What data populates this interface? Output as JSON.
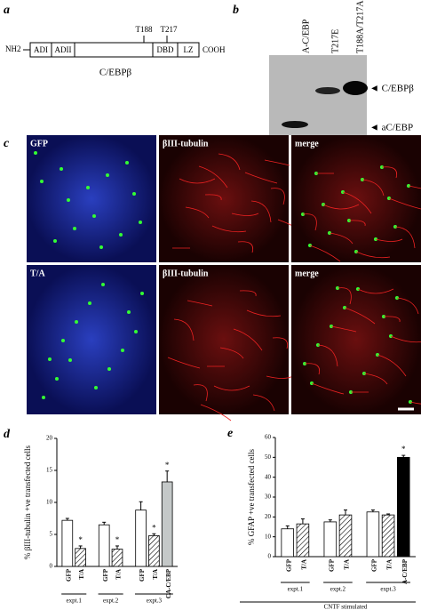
{
  "a": {
    "panel_label": "a",
    "n_term": "NH2",
    "c_term": "COOH",
    "domains": [
      "ADI",
      "ADII",
      "DBD",
      "LZ"
    ],
    "sites": [
      "T188",
      "T217"
    ],
    "name": "C/EBPβ"
  },
  "b": {
    "panel_label": "b",
    "lanes": [
      "A-C/EBP",
      "T217E",
      "T188A/T217A"
    ],
    "bands": [
      "◄ C/EBPβ",
      "◄ aC/EBP"
    ]
  },
  "c": {
    "panel_label": "c",
    "labels": [
      "GFP",
      "βIII-tubulin",
      "merge",
      "T/A",
      "βIII-tubulin",
      "merge"
    ]
  },
  "chart_data": [
    {
      "type": "bar",
      "panel_label": "d",
      "y_label": "% βIII-tubulin +ve transfected cells",
      "categories": [
        "GFP",
        "T/A",
        "GFP",
        "T/A",
        "GFP",
        "T/A",
        "CA-C/EBP"
      ],
      "values": [
        7.2,
        2.8,
        6.5,
        2.7,
        8.8,
        4.8,
        13.2
      ],
      "errors": [
        0.3,
        0.4,
        0.4,
        0.5,
        1.3,
        0.3,
        1.7
      ],
      "markers": [
        null,
        "*",
        null,
        "*",
        null,
        "*",
        "*"
      ],
      "bar_fills": [
        "#ffffff",
        "hatch",
        "#ffffff",
        "hatch",
        "#ffffff",
        "hatch",
        "#c4c8c8"
      ],
      "groups": [
        "expt.1",
        "expt.2",
        "expt.3"
      ],
      "group_sizes": [
        2,
        2,
        3
      ],
      "ylim": [
        0,
        20
      ],
      "yticks": [
        0,
        5,
        10,
        15,
        20
      ]
    },
    {
      "type": "bar",
      "panel_label": "e",
      "y_label": "% GFAP +ve transfected cells",
      "categories": [
        "GFP",
        "T/A",
        "GFP",
        "T/A",
        "GFP",
        "T/A",
        "A-C/EBP"
      ],
      "values": [
        14,
        16.5,
        17.5,
        21,
        22.5,
        21,
        50
      ],
      "errors": [
        1.5,
        2.5,
        1,
        2.5,
        1,
        0.5,
        1
      ],
      "markers": [
        null,
        null,
        null,
        null,
        null,
        null,
        "*"
      ],
      "bar_fills": [
        "#ffffff",
        "hatch",
        "#ffffff",
        "hatch",
        "#ffffff",
        "hatch",
        "#000000"
      ],
      "groups": [
        "expt.1",
        "expt.2",
        "expt.3"
      ],
      "group_sizes": [
        2,
        2,
        3
      ],
      "ylim": [
        0,
        60
      ],
      "yticks": [
        0,
        10,
        20,
        30,
        40,
        50,
        60
      ],
      "footer": "CNTF stimulated"
    }
  ]
}
